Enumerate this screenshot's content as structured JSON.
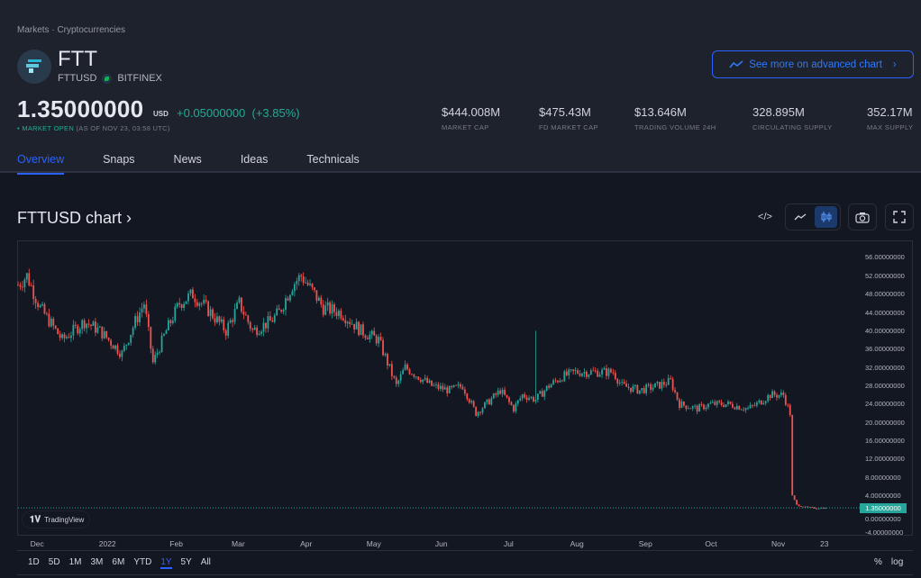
{
  "breadcrumb": "Markets · Cryptocurrencies",
  "symbol": {
    "name": "FTT",
    "ticker": "FTTUSD",
    "exchange": "BITFINEX"
  },
  "quote": {
    "price": "1.35000000",
    "currency": "USD",
    "change": "+0.05000000",
    "change_pct": "(+3.85%)",
    "status": "MARKET OPEN",
    "as_of": "(AS OF NOV 23, 03:58 UTC)"
  },
  "stats": [
    {
      "value": "$444.008M",
      "label": "MARKET CAP"
    },
    {
      "value": "$475.43M",
      "label": "FD MARKET CAP"
    },
    {
      "value": "$13.646M",
      "label": "TRADING VOLUME 24H"
    },
    {
      "value": "328.895M",
      "label": "CIRCULATING SUPPLY"
    },
    {
      "value": "352.17M",
      "label": "MAX SUPPLY"
    }
  ],
  "advanced_button": "See more on advanced chart",
  "tabs": [
    "Overview",
    "Snaps",
    "News",
    "Ideas",
    "Technicals"
  ],
  "chart_title": "FTTUSD chart ›",
  "watermark": "TradingView",
  "colors": {
    "up": "#26a69a",
    "down": "#ef5350",
    "accent": "#2962ff"
  },
  "ranges": [
    "1D",
    "5D",
    "1M",
    "3M",
    "6M",
    "YTD",
    "1Y",
    "5Y",
    "All"
  ],
  "active_range": "1Y",
  "scale_buttons": [
    "%",
    "log"
  ],
  "chart_data": {
    "type": "candlestick",
    "title": "FTTUSD chart",
    "ylim": [
      -4,
      58
    ],
    "y_ticks": [
      "56.00000000",
      "52.00000000",
      "48.00000000",
      "44.00000000",
      "40.00000000",
      "36.00000000",
      "32.00000000",
      "28.00000000",
      "24.00000000",
      "20.00000000",
      "16.00000000",
      "12.00000000",
      "8.00000000",
      "4.00000000",
      "0.00000000",
      "-4.00000000"
    ],
    "x_ticks": [
      {
        "label": "Dec",
        "day": 8
      },
      {
        "label": "2022",
        "day": 39
      },
      {
        "label": "Feb",
        "day": 71
      },
      {
        "label": "Mar",
        "day": 99
      },
      {
        "label": "Apr",
        "day": 130
      },
      {
        "label": "May",
        "day": 160
      },
      {
        "label": "Jun",
        "day": 191
      },
      {
        "label": "Jul",
        "day": 222
      },
      {
        "label": "Aug",
        "day": 252
      },
      {
        "label": "Sep",
        "day": 283
      },
      {
        "label": "Oct",
        "day": 313
      },
      {
        "label": "Nov",
        "day": 343
      },
      {
        "label": "23",
        "day": 365
      }
    ],
    "last_price": 1.35,
    "last_label": "1.35000000",
    "close_path": [
      [
        0,
        50
      ],
      [
        4,
        52
      ],
      [
        10,
        45
      ],
      [
        20,
        38
      ],
      [
        30,
        42
      ],
      [
        37,
        40
      ],
      [
        47,
        35
      ],
      [
        53,
        42
      ],
      [
        57,
        46
      ],
      [
        61,
        33
      ],
      [
        67,
        40
      ],
      [
        73,
        46
      ],
      [
        79,
        48
      ],
      [
        87,
        44
      ],
      [
        94,
        40
      ],
      [
        100,
        46
      ],
      [
        106,
        40
      ],
      [
        114,
        42
      ],
      [
        118,
        44
      ],
      [
        124,
        50
      ],
      [
        128,
        52
      ],
      [
        134,
        48
      ],
      [
        138,
        45
      ],
      [
        146,
        44
      ],
      [
        155,
        40
      ],
      [
        163,
        38
      ],
      [
        171,
        28
      ],
      [
        175,
        32
      ],
      [
        181,
        30
      ],
      [
        187,
        28
      ],
      [
        195,
        27
      ],
      [
        201,
        28
      ],
      [
        207,
        22
      ],
      [
        216,
        26
      ],
      [
        218,
        27
      ],
      [
        224,
        23
      ],
      [
        228,
        26
      ],
      [
        234,
        25
      ],
      [
        240,
        28
      ],
      [
        246,
        30
      ],
      [
        252,
        31
      ],
      [
        261,
        31
      ],
      [
        269,
        31
      ],
      [
        273,
        28
      ],
      [
        281,
        27
      ],
      [
        289,
        28
      ],
      [
        295,
        29
      ],
      [
        299,
        24
      ],
      [
        307,
        23
      ],
      [
        313,
        24
      ],
      [
        321,
        24
      ],
      [
        330,
        23
      ],
      [
        334,
        24
      ],
      [
        340,
        26
      ],
      [
        346,
        26
      ],
      [
        349,
        22
      ],
      [
        350,
        4
      ],
      [
        352,
        2
      ],
      [
        356,
        1.5
      ],
      [
        360,
        1.3
      ],
      [
        365,
        1.35
      ]
    ],
    "wick_spikes": [
      {
        "day": 234,
        "high": 40
      }
    ]
  }
}
